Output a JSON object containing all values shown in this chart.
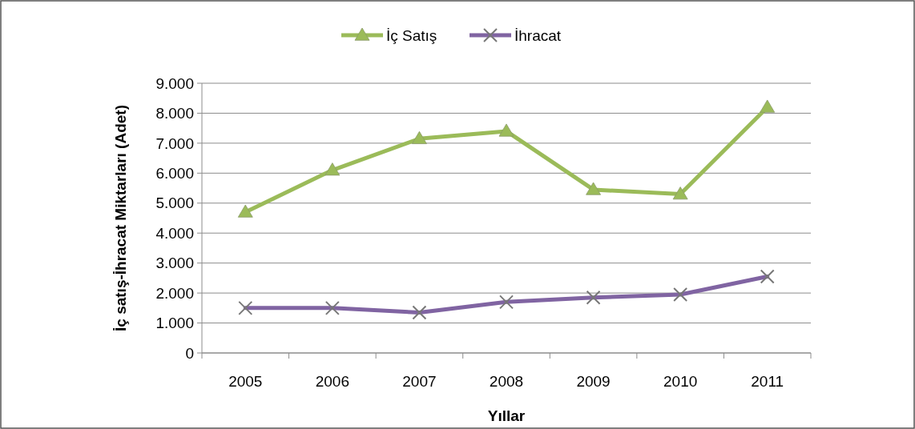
{
  "chart_data": {
    "type": "line",
    "xlabel": "Yıllar",
    "ylabel": "İç satış-İhracat Miktarları (Adet)",
    "categories": [
      "2005",
      "2006",
      "2007",
      "2008",
      "2009",
      "2010",
      "2011"
    ],
    "series": [
      {
        "name": "İç Satış",
        "color": "#9bbb59",
        "marker": "triangle",
        "values": [
          4700,
          6100,
          7150,
          7400,
          5450,
          5300,
          8200
        ]
      },
      {
        "name": "İhracat",
        "color": "#8064a2",
        "marker": "cross",
        "values": [
          1500,
          1500,
          1350,
          1700,
          1850,
          1950,
          2550
        ]
      }
    ],
    "ylim": [
      0,
      9000
    ],
    "yticks": [
      0,
      {
        "value": 1000,
        "label": "1.000"
      },
      {
        "value": 2000,
        "label": "2.000"
      },
      {
        "value": 3000,
        "label": "3.000"
      },
      {
        "value": 4000,
        "label": "4.000"
      },
      {
        "value": 5000,
        "label": "5.000"
      },
      {
        "value": 6000,
        "label": "6.000"
      },
      {
        "value": 7000,
        "label": "7.000"
      },
      {
        "value": 8000,
        "label": "8.000"
      },
      {
        "value": 9000,
        "label": "9.000"
      }
    ],
    "grid": "y",
    "legend": "top"
  }
}
